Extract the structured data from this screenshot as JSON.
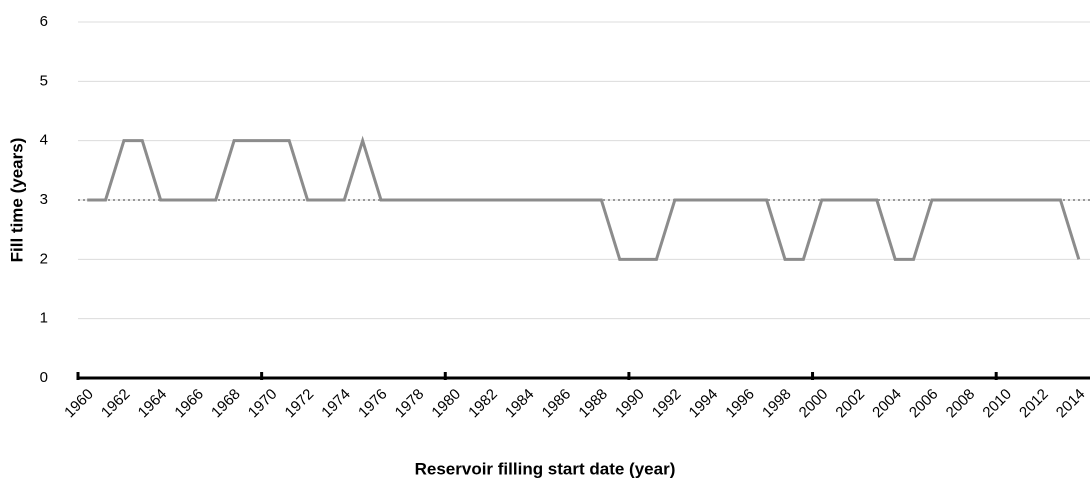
{
  "chart_data": {
    "type": "line",
    "x_label": "Reservoir filling start date (year)",
    "y_label": "Fill time (years)",
    "categories": [
      "1960",
      null,
      "1962",
      null,
      "1964",
      null,
      "1966",
      null,
      "1968",
      null,
      "1970",
      null,
      "1972",
      null,
      "1974",
      null,
      "1976",
      null,
      "1978",
      null,
      "1980",
      null,
      "1982",
      null,
      "1984",
      null,
      "1986",
      null,
      "1988",
      null,
      "1990",
      null,
      "1992",
      null,
      "1994",
      null,
      "1996",
      null,
      "1998",
      null,
      "2000",
      null,
      "2002",
      null,
      "2004",
      null,
      "2006",
      null,
      "2008",
      null,
      "2010",
      null,
      "2012",
      null,
      "2014"
    ],
    "values": [
      3,
      3,
      4,
      4,
      3,
      3,
      3,
      3,
      4,
      4,
      4,
      4,
      3,
      3,
      3,
      4,
      3,
      3,
      3,
      3,
      3,
      3,
      3,
      3,
      3,
      3,
      3,
      3,
      3,
      2,
      2,
      2,
      3,
      3,
      3,
      3,
      3,
      3,
      2,
      2,
      3,
      3,
      3,
      3,
      2,
      2,
      3,
      3,
      3,
      3,
      3,
      3,
      3,
      3,
      2
    ],
    "color": "#8c8c8c",
    "reference_line": 3,
    "ylim": [
      0,
      6
    ],
    "yticks": [
      0,
      1,
      2,
      3,
      4,
      5,
      6
    ],
    "grid": true
  }
}
